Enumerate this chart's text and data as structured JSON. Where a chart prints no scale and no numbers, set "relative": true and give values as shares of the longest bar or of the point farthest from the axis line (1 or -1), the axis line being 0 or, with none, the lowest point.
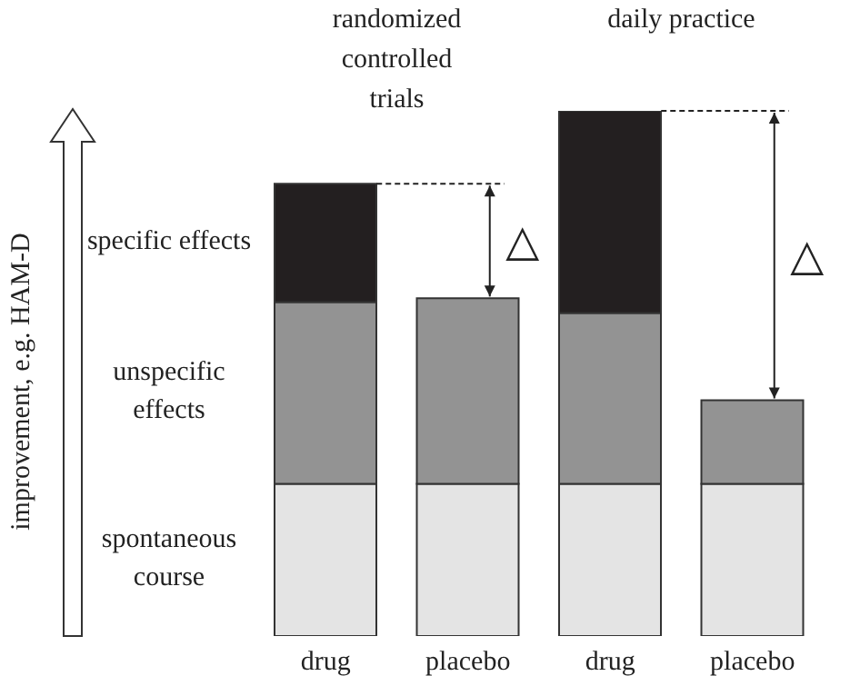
{
  "chart_data": {
    "type": "bar",
    "stacked": true,
    "relative": true,
    "legend": false,
    "categories": [
      "drug",
      "placebo",
      "drug",
      "placebo"
    ],
    "series": [
      {
        "name": "spontaneous course",
        "color": "#e4e4e4",
        "values": [
          0.29,
          0.29,
          0.29,
          0.29
        ]
      },
      {
        "name": "unspecific effects",
        "color": "#939393",
        "values": [
          0.346,
          0.353,
          0.325,
          0.159
        ]
      },
      {
        "name": "specific effects",
        "color": "#231f20",
        "values": [
          0.225,
          null,
          0.385,
          null
        ]
      }
    ],
    "annotations": [
      "randomized controlled trials",
      "daily practice",
      "△",
      "△",
      "improvement, e.g. HAM-D"
    ]
  }
}
